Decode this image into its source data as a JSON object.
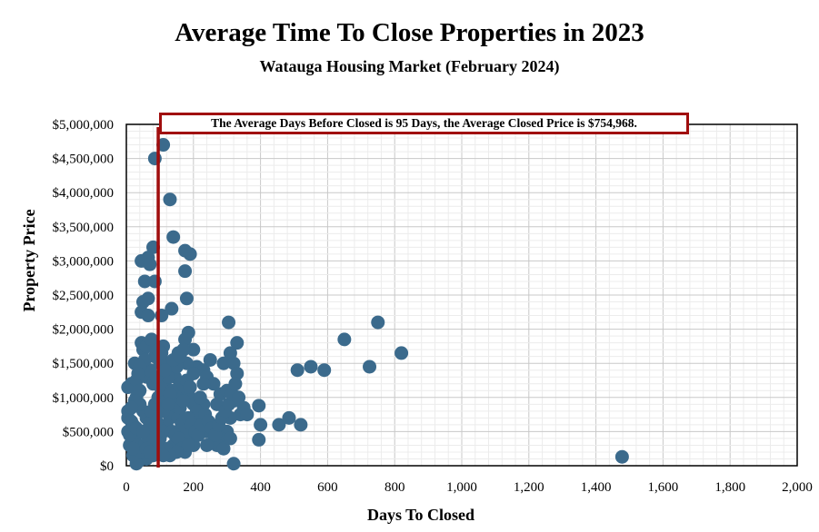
{
  "chart_data": {
    "type": "scatter",
    "title": "Average Time To Close Properties in 2023",
    "subtitle": "Watauga Housing Market (February 2024)",
    "xlabel": "Days To Closed",
    "ylabel": "Property Price",
    "xlim": [
      0,
      2000
    ],
    "ylim": [
      0,
      5000000
    ],
    "x_ticks": [
      "0",
      "200",
      "400",
      "600",
      "800",
      "1,000",
      "1,200",
      "1,400",
      "1,600",
      "1,800",
      "2,000"
    ],
    "y_ticks": [
      "$0",
      "$500,000",
      "$1,000,000",
      "$1,500,000",
      "$2,000,000",
      "$2,500,000",
      "$3,000,000",
      "$3,500,000",
      "$4,000,000",
      "$4,500,000",
      "$5,000,000"
    ],
    "annotation": "The Average Days Before Closed is 95 Days, the Average Closed Price is $754,968.",
    "average_days": 95,
    "average_price": 754968,
    "grid": true,
    "point_color": "#3b6a8c",
    "average_line_color": "#a00d0d",
    "points": [
      [
        110,
        4700000
      ],
      [
        85,
        4500000
      ],
      [
        130,
        3900000
      ],
      [
        140,
        3350000
      ],
      [
        80,
        3200000
      ],
      [
        175,
        3150000
      ],
      [
        190,
        3100000
      ],
      [
        45,
        3000000
      ],
      [
        65,
        3050000
      ],
      [
        70,
        2950000
      ],
      [
        175,
        2850000
      ],
      [
        55,
        2700000
      ],
      [
        85,
        2700000
      ],
      [
        180,
        2450000
      ],
      [
        50,
        2400000
      ],
      [
        65,
        2450000
      ],
      [
        135,
        2300000
      ],
      [
        45,
        2250000
      ],
      [
        65,
        2200000
      ],
      [
        105,
        2200000
      ],
      [
        305,
        2100000
      ],
      [
        185,
        1950000
      ],
      [
        175,
        1850000
      ],
      [
        650,
        1850000
      ],
      [
        750,
        2100000
      ],
      [
        820,
        1650000
      ],
      [
        330,
        1800000
      ],
      [
        155,
        1650000
      ],
      [
        200,
        1700000
      ],
      [
        310,
        1650000
      ],
      [
        510,
        1400000
      ],
      [
        550,
        1450000
      ],
      [
        590,
        1400000
      ],
      [
        725,
        1450000
      ],
      [
        290,
        1500000
      ],
      [
        320,
        1500000
      ],
      [
        250,
        1550000
      ],
      [
        210,
        1450000
      ],
      [
        180,
        1500000
      ],
      [
        230,
        1400000
      ],
      [
        330,
        1350000
      ],
      [
        240,
        1300000
      ],
      [
        260,
        1200000
      ],
      [
        350,
        850000
      ],
      [
        395,
        880000
      ],
      [
        400,
        600000
      ],
      [
        455,
        600000
      ],
      [
        485,
        700000
      ],
      [
        520,
        600000
      ],
      [
        395,
        380000
      ],
      [
        320,
        30000
      ],
      [
        1478,
        130000
      ],
      [
        280,
        1050000
      ],
      [
        300,
        1100000
      ],
      [
        320,
        950000
      ],
      [
        340,
        750000
      ],
      [
        360,
        750000
      ],
      [
        270,
        900000
      ],
      [
        310,
        700000
      ],
      [
        300,
        500000
      ],
      [
        280,
        400000
      ],
      [
        260,
        350000
      ],
      [
        240,
        500000
      ],
      [
        220,
        700000
      ],
      [
        230,
        900000
      ],
      [
        250,
        600000
      ],
      [
        270,
        300000
      ],
      [
        290,
        250000
      ],
      [
        310,
        400000
      ],
      [
        240,
        300000
      ],
      [
        200,
        300000
      ],
      [
        180,
        400000
      ],
      [
        160,
        350000
      ],
      [
        140,
        300000
      ],
      [
        120,
        250000
      ],
      [
        100,
        200000
      ],
      [
        80,
        150000
      ],
      [
        60,
        100000
      ],
      [
        40,
        80000
      ],
      [
        30,
        30000
      ],
      [
        20,
        150000
      ],
      [
        10,
        300000
      ],
      [
        5,
        500000
      ],
      [
        5,
        700000
      ],
      [
        5,
        800000
      ],
      [
        5,
        1150000
      ],
      [
        15,
        1200000
      ],
      [
        25,
        1500000
      ],
      [
        30,
        1250000
      ],
      [
        40,
        1100000
      ],
      [
        50,
        1700000
      ],
      [
        45,
        1800000
      ],
      [
        60,
        1750000
      ],
      [
        75,
        1850000
      ],
      [
        85,
        1600000
      ],
      [
        95,
        1700000
      ],
      [
        110,
        1750000
      ],
      [
        120,
        1500000
      ],
      [
        130,
        1400000
      ],
      [
        145,
        1300000
      ],
      [
        160,
        1200000
      ],
      [
        170,
        1100000
      ],
      [
        190,
        1000000
      ],
      [
        200,
        900000
      ],
      [
        210,
        800000
      ],
      [
        220,
        1000000
      ],
      [
        230,
        1200000
      ],
      [
        150,
        1000000
      ],
      [
        140,
        850000
      ],
      [
        130,
        700000
      ],
      [
        120,
        600000
      ],
      [
        110,
        500000
      ],
      [
        100,
        400000
      ],
      [
        90,
        350000
      ],
      [
        80,
        500000
      ],
      [
        70,
        600000
      ],
      [
        60,
        700000
      ],
      [
        50,
        800000
      ],
      [
        40,
        900000
      ],
      [
        30,
        1000000
      ],
      [
        20,
        600000
      ],
      [
        25,
        400000
      ],
      [
        35,
        300000
      ],
      [
        45,
        200000
      ],
      [
        55,
        300000
      ],
      [
        65,
        400000
      ],
      [
        75,
        800000
      ],
      [
        85,
        900000
      ],
      [
        95,
        1000000
      ],
      [
        105,
        1100000
      ],
      [
        115,
        1200000
      ],
      [
        125,
        1300000
      ],
      [
        135,
        1100000
      ],
      [
        145,
        900000
      ],
      [
        155,
        700000
      ],
      [
        165,
        600000
      ],
      [
        175,
        500000
      ],
      [
        185,
        700000
      ],
      [
        195,
        600000
      ],
      [
        205,
        500000
      ],
      [
        215,
        450000
      ],
      [
        225,
        600000
      ],
      [
        235,
        750000
      ],
      [
        245,
        650000
      ],
      [
        255,
        550000
      ],
      [
        265,
        450000
      ],
      [
        275,
        600000
      ],
      [
        285,
        700000
      ],
      [
        295,
        800000
      ],
      [
        305,
        900000
      ],
      [
        315,
        1050000
      ],
      [
        325,
        1200000
      ],
      [
        335,
        1000000
      ],
      [
        60,
        1300000
      ],
      [
        70,
        1400000
      ],
      [
        80,
        1200000
      ],
      [
        90,
        1300000
      ],
      [
        100,
        1500000
      ],
      [
        55,
        1550000
      ],
      [
        40,
        1450000
      ],
      [
        35,
        1350000
      ],
      [
        25,
        950000
      ],
      [
        15,
        850000
      ],
      [
        15,
        650000
      ],
      [
        10,
        450000
      ],
      [
        20,
        250000
      ],
      [
        30,
        550000
      ],
      [
        50,
        500000
      ],
      [
        60,
        250000
      ],
      [
        70,
        200000
      ],
      [
        90,
        650000
      ],
      [
        110,
        800000
      ],
      [
        120,
        950000
      ],
      [
        130,
        1050000
      ],
      [
        160,
        850000
      ],
      [
        170,
        950000
      ],
      [
        180,
        1250000
      ],
      [
        190,
        1150000
      ],
      [
        200,
        1350000
      ],
      [
        150,
        1450000
      ],
      [
        140,
        1550000
      ],
      [
        160,
        1600000
      ],
      [
        170,
        1700000
      ],
      [
        105,
        1650000
      ],
      [
        115,
        1400000
      ],
      [
        125,
        900000
      ],
      [
        135,
        500000
      ],
      [
        145,
        450000
      ],
      [
        155,
        400000
      ],
      [
        165,
        250000
      ],
      [
        175,
        200000
      ],
      [
        185,
        300000
      ],
      [
        150,
        200000
      ],
      [
        130,
        150000
      ],
      [
        110,
        150000
      ]
    ]
  }
}
